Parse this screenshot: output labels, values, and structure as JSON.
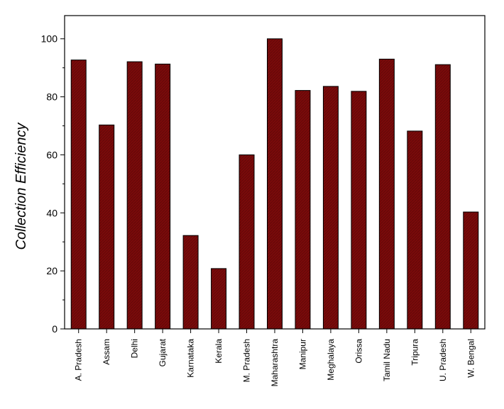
{
  "chart_data": {
    "type": "bar",
    "title": "",
    "xlabel": "",
    "ylabel": "Collection Efficiency",
    "ylim": [
      0,
      108
    ],
    "yticks": [
      0,
      20,
      40,
      60,
      80,
      100
    ],
    "grid": false,
    "bar_color": "#7a0a0a",
    "categories": [
      "A. Pradesh",
      "Assam",
      "Delhi",
      "Gujarat",
      "Karnataka",
      "Kerala",
      "M. Pradesh",
      "Maharashtra",
      "Manipur",
      "Meghalaya",
      "Orissa",
      "Tamil Nadu",
      "Tripura",
      "U. Pradesh",
      "W. Bengal"
    ],
    "values": [
      92.7,
      70.3,
      92.1,
      91.3,
      32.2,
      20.8,
      60.0,
      100.0,
      82.2,
      83.6,
      81.9,
      93.0,
      68.2,
      91.1,
      40.3
    ]
  }
}
